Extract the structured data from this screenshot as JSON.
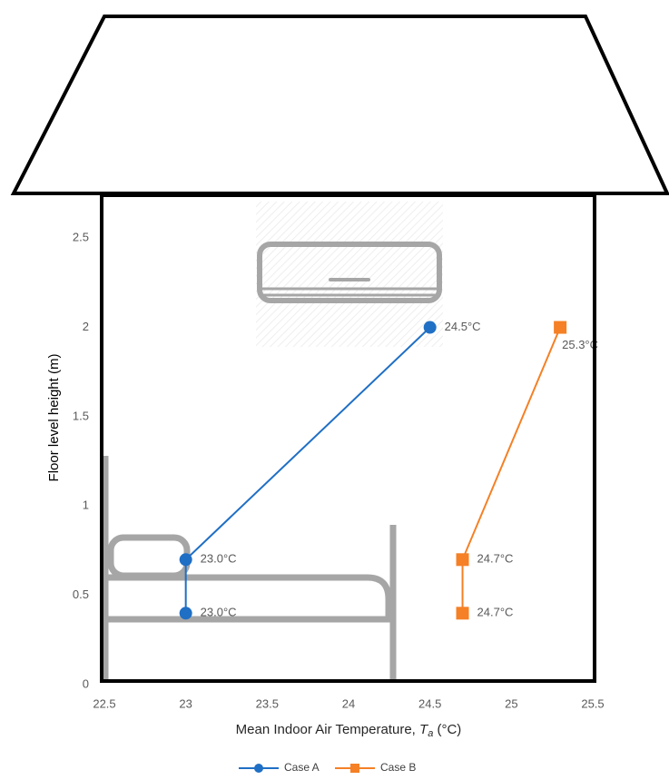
{
  "chart_data": {
    "type": "line",
    "y_label": "Floor level height (m)",
    "x_label": [
      "Mean Indoor Air Temperature, ",
      "T",
      "a",
      " (°C)"
    ],
    "xlim": [
      22.5,
      25.5
    ],
    "xticks": [
      22.5,
      23,
      23.5,
      24,
      24.5,
      25,
      25.5
    ],
    "ylim": [
      0,
      2.75
    ],
    "yticks": [
      0,
      0.5,
      1,
      1.5,
      2,
      2.5
    ],
    "series": [
      {
        "name": "Case A",
        "color": "#1f6fc5",
        "marker": "circle",
        "x": [
          23.0,
          23.0,
          24.5
        ],
        "values": [
          0.4,
          0.7,
          2.0
        ],
        "value_labels": [
          "23.0°C",
          "23.0°C",
          "24.5°C"
        ]
      },
      {
        "name": "Case B",
        "color": "#f58025",
        "marker": "square",
        "x": [
          24.7,
          24.7,
          25.3
        ],
        "values": [
          0.4,
          0.7,
          2.0
        ],
        "value_labels": [
          "24.7°C",
          "24.7°C",
          "25.3°C"
        ]
      }
    ]
  }
}
